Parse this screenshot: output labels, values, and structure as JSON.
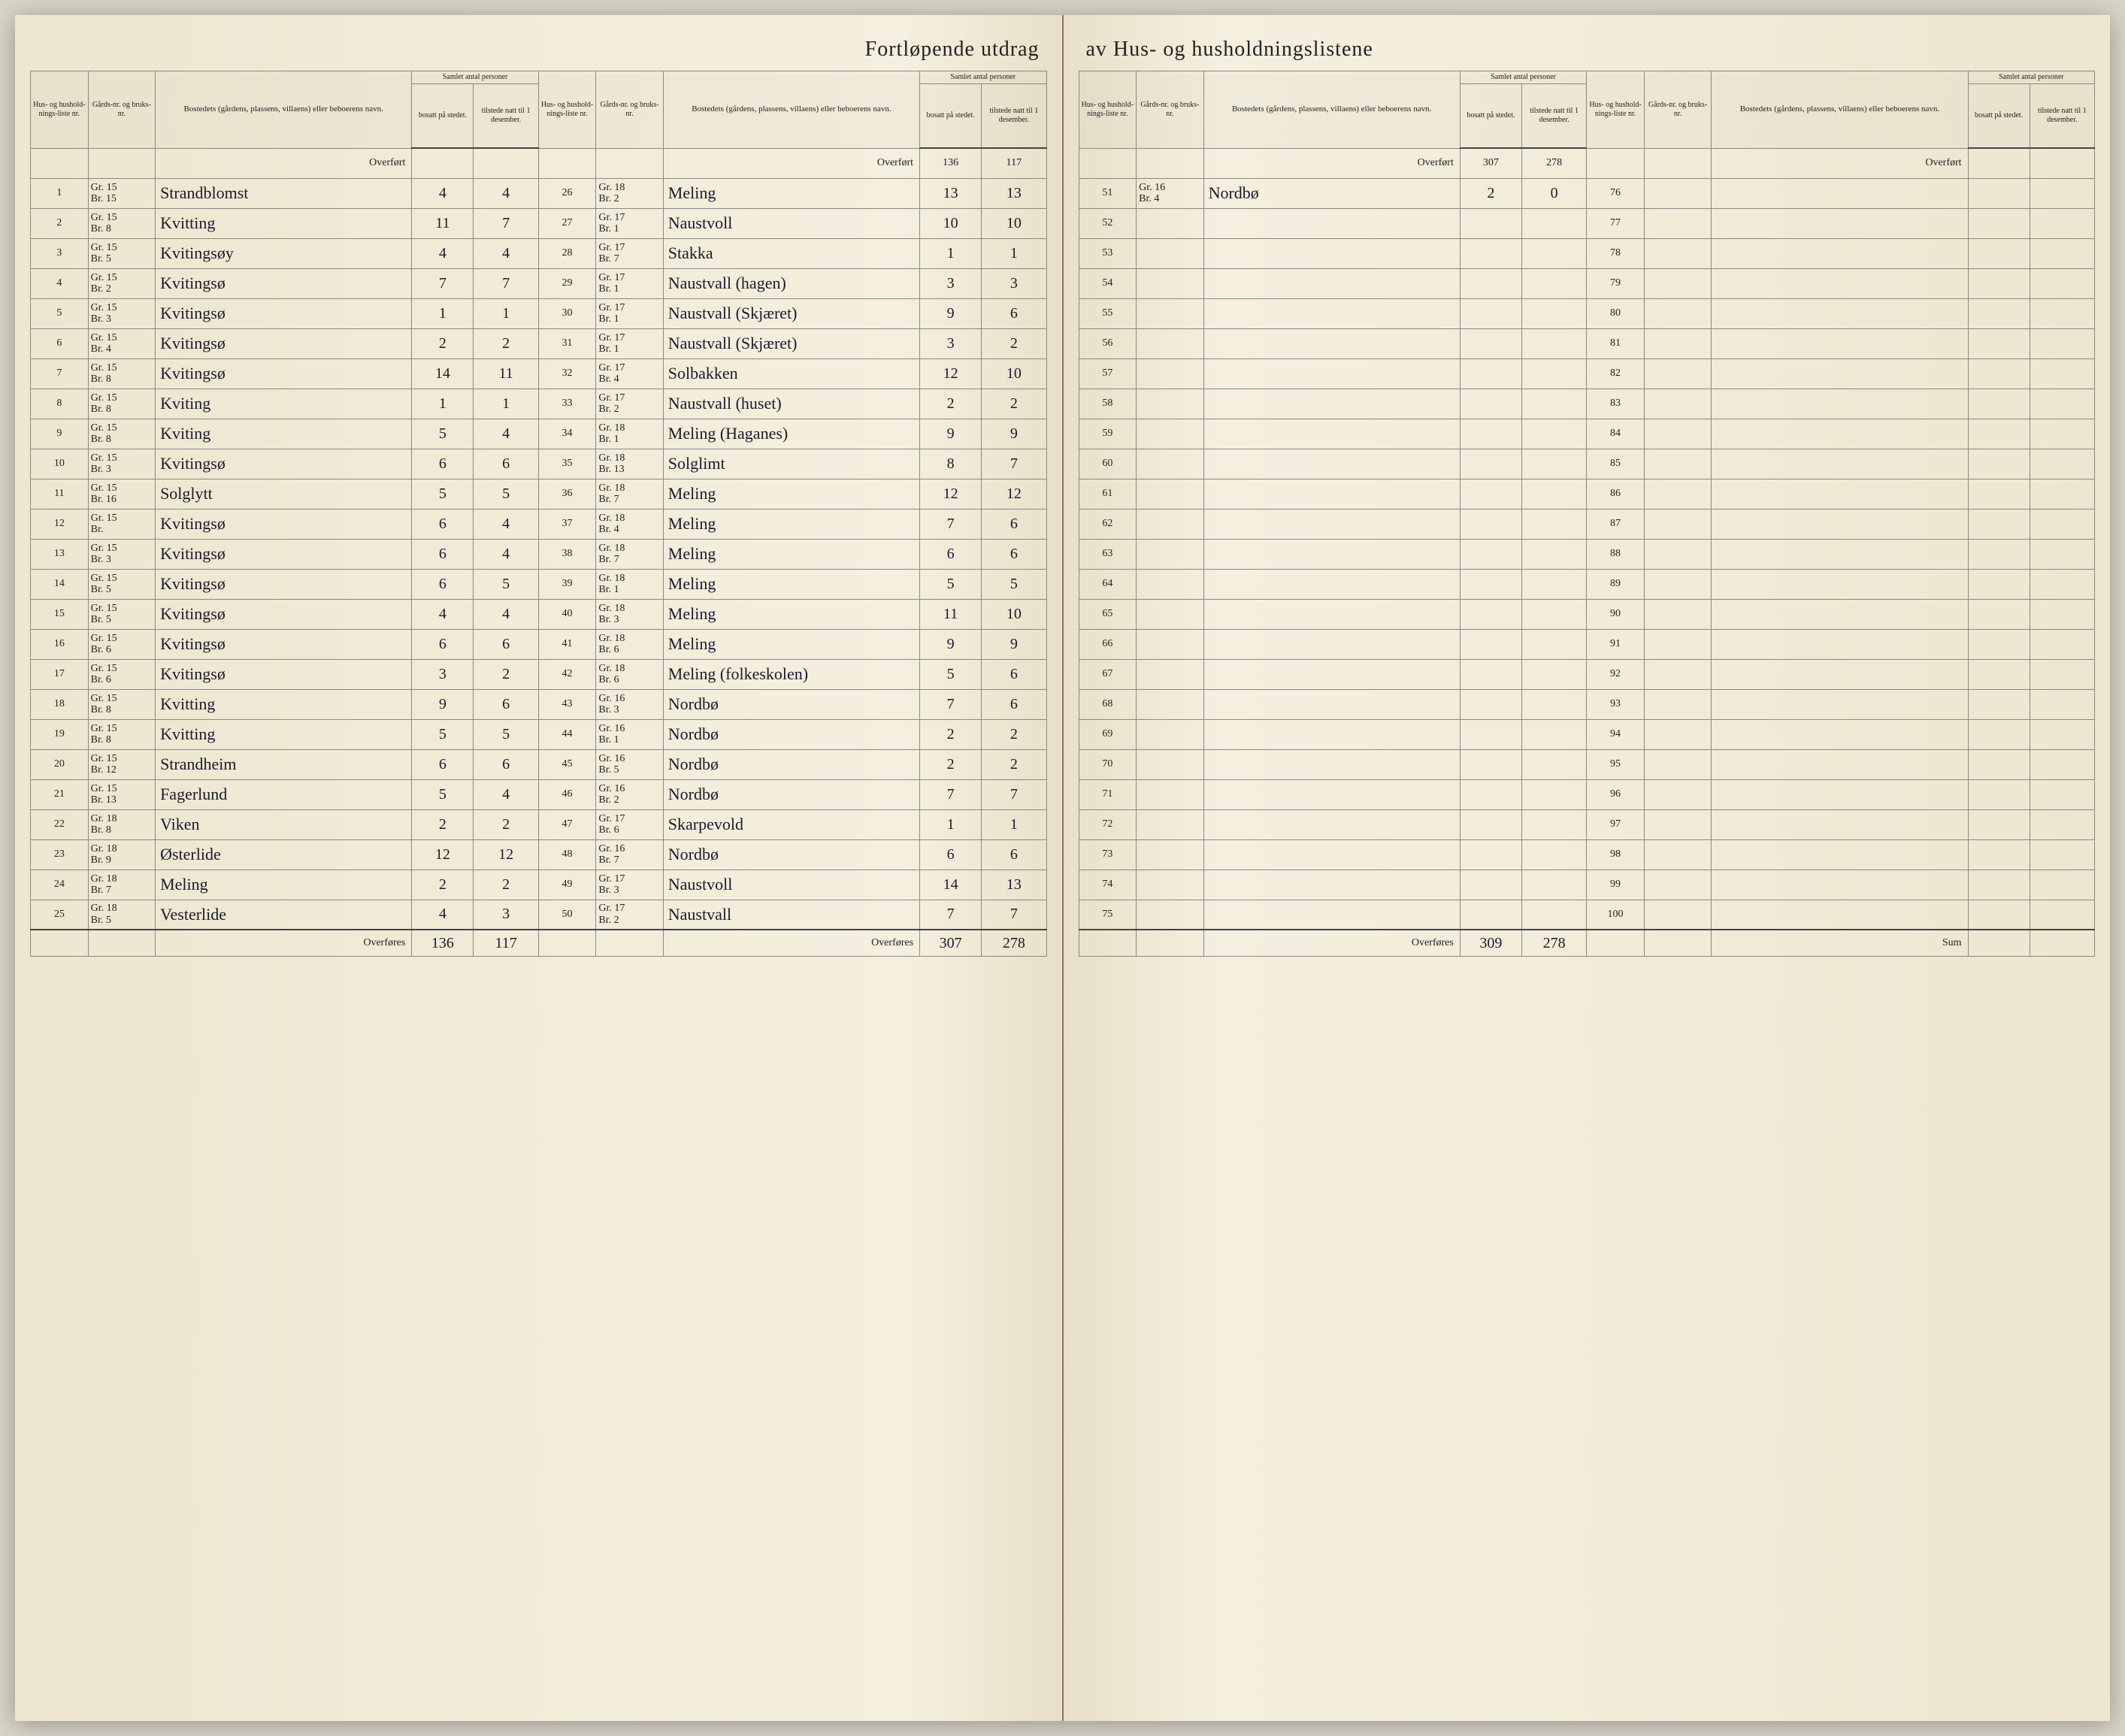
{
  "title_left": "Fortløpende utdrag",
  "title_right": "av Hus- og husholdningslistene",
  "headers": {
    "liste_nr": "Hus- og hushold-nings-liste nr.",
    "gards_nr": "Gårds-nr. og bruks-nr.",
    "bosted": "Bostedets (gårdens, plassens, villaens) eller beboerens navn.",
    "samlet": "Samlet antal personer",
    "bosatt": "bosatt på stedet.",
    "tilstede": "tilstede natt til 1 desember."
  },
  "overfort_label": "Overført",
  "overfores_label": "Overføres",
  "sum_label": "Sum",
  "col1_overfort": {
    "bosatt": "",
    "tilstede": ""
  },
  "col2_overfort": {
    "bosatt": "136",
    "tilstede": "117"
  },
  "col3_overfort": {
    "bosatt": "307",
    "tilstede": "278"
  },
  "col4_overfort": {
    "bosatt": "",
    "tilstede": ""
  },
  "col1_footer": {
    "bosatt": "136",
    "tilstede": "117"
  },
  "col2_footer": {
    "bosatt": "307",
    "tilstede": "278"
  },
  "col3_footer": {
    "bosatt": "309",
    "tilstede": "278"
  },
  "col4_footer": {
    "bosatt": "",
    "tilstede": ""
  },
  "rows_left_a": [
    {
      "n": "1",
      "g": "Gr. 15",
      "b": "Br. 15",
      "name": "Strandblomst",
      "bo": "4",
      "ti": "4"
    },
    {
      "n": "2",
      "g": "Gr. 15",
      "b": "Br. 8",
      "name": "Kvitting",
      "bo": "11",
      "ti": "7"
    },
    {
      "n": "3",
      "g": "Gr. 15",
      "b": "Br. 5",
      "name": "Kvitingsøy",
      "bo": "4",
      "ti": "4"
    },
    {
      "n": "4",
      "g": "Gr. 15",
      "b": "Br. 2",
      "name": "Kvitingsø",
      "bo": "7",
      "ti": "7"
    },
    {
      "n": "5",
      "g": "Gr. 15",
      "b": "Br. 3",
      "name": "Kvitingsø",
      "bo": "1",
      "ti": "1"
    },
    {
      "n": "6",
      "g": "Gr. 15",
      "b": "Br. 4",
      "name": "Kvitingsø",
      "bo": "2",
      "ti": "2"
    },
    {
      "n": "7",
      "g": "Gr. 15",
      "b": "Br. 8",
      "name": "Kvitingsø",
      "bo": "14",
      "ti": "11"
    },
    {
      "n": "8",
      "g": "Gr. 15",
      "b": "Br. 8",
      "name": "Kviting",
      "bo": "1",
      "ti": "1"
    },
    {
      "n": "9",
      "g": "Gr. 15",
      "b": "Br. 8",
      "name": "Kviting",
      "bo": "5",
      "ti": "4"
    },
    {
      "n": "10",
      "g": "Gr. 15",
      "b": "Br. 3",
      "name": "Kvitingsø",
      "bo": "6",
      "ti": "6"
    },
    {
      "n": "11",
      "g": "Gr. 15",
      "b": "Br. 16",
      "name": "Solglytt",
      "bo": "5",
      "ti": "5"
    },
    {
      "n": "12",
      "g": "Gr. 15",
      "b": "Br.",
      "name": "Kvitingsø",
      "bo": "6",
      "ti": "4"
    },
    {
      "n": "13",
      "g": "Gr. 15",
      "b": "Br. 3",
      "name": "Kvitingsø",
      "bo": "6",
      "ti": "4"
    },
    {
      "n": "14",
      "g": "Gr. 15",
      "b": "Br. 5",
      "name": "Kvitingsø",
      "bo": "6",
      "ti": "5"
    },
    {
      "n": "15",
      "g": "Gr. 15",
      "b": "Br. 5",
      "name": "Kvitingsø",
      "bo": "4",
      "ti": "4"
    },
    {
      "n": "16",
      "g": "Gr. 15",
      "b": "Br. 6",
      "name": "Kvitingsø",
      "bo": "6",
      "ti": "6"
    },
    {
      "n": "17",
      "g": "Gr. 15",
      "b": "Br. 6",
      "name": "Kvitingsø",
      "bo": "3",
      "ti": "2"
    },
    {
      "n": "18",
      "g": "Gr. 15",
      "b": "Br. 8",
      "name": "Kvitting",
      "bo": "9",
      "ti": "6"
    },
    {
      "n": "19",
      "g": "Gr. 15",
      "b": "Br. 8",
      "name": "Kvitting",
      "bo": "5",
      "ti": "5"
    },
    {
      "n": "20",
      "g": "Gr. 15",
      "b": "Br. 12",
      "name": "Strandheim",
      "bo": "6",
      "ti": "6"
    },
    {
      "n": "21",
      "g": "Gr. 15",
      "b": "Br. 13",
      "name": "Fagerlund",
      "bo": "5",
      "ti": "4"
    },
    {
      "n": "22",
      "g": "Gr. 18",
      "b": "Br. 8",
      "name": "Viken",
      "bo": "2",
      "ti": "2"
    },
    {
      "n": "23",
      "g": "Gr. 18",
      "b": "Br. 9",
      "name": "Østerlide",
      "bo": "12",
      "ti": "12"
    },
    {
      "n": "24",
      "g": "Gr. 18",
      "b": "Br. 7",
      "name": "Meling",
      "bo": "2",
      "ti": "2"
    },
    {
      "n": "25",
      "g": "Gr. 18",
      "b": "Br. 5",
      "name": "Vesterlide",
      "bo": "4",
      "ti": "3"
    }
  ],
  "rows_left_b": [
    {
      "n": "26",
      "g": "Gr. 18",
      "b": "Br. 2",
      "name": "Meling",
      "bo": "13",
      "ti": "13"
    },
    {
      "n": "27",
      "g": "Gr. 17",
      "b": "Br. 1",
      "name": "Naustvoll",
      "bo": "10",
      "ti": "10"
    },
    {
      "n": "28",
      "g": "Gr. 17",
      "b": "Br. 7",
      "name": "Stakka",
      "bo": "1",
      "ti": "1"
    },
    {
      "n": "29",
      "g": "Gr. 17",
      "b": "Br. 1",
      "name": "Naustvall (hagen)",
      "bo": "3",
      "ti": "3"
    },
    {
      "n": "30",
      "g": "Gr. 17",
      "b": "Br. 1",
      "name": "Naustvall (Skjæret)",
      "bo": "9",
      "ti": "6"
    },
    {
      "n": "31",
      "g": "Gr. 17",
      "b": "Br. 1",
      "name": "Naustvall (Skjæret)",
      "bo": "3",
      "ti": "2"
    },
    {
      "n": "32",
      "g": "Gr. 17",
      "b": "Br. 4",
      "name": "Solbakken",
      "bo": "12",
      "ti": "10"
    },
    {
      "n": "33",
      "g": "Gr. 17",
      "b": "Br. 2",
      "name": "Naustvall (huset)",
      "bo": "2",
      "ti": "2"
    },
    {
      "n": "34",
      "g": "Gr. 18",
      "b": "Br. 1",
      "name": "Meling (Haganes)",
      "bo": "9",
      "ti": "9"
    },
    {
      "n": "35",
      "g": "Gr. 18",
      "b": "Br. 13",
      "name": "Solglimt",
      "bo": "8",
      "ti": "7"
    },
    {
      "n": "36",
      "g": "Gr. 18",
      "b": "Br. 7",
      "name": "Meling",
      "bo": "12",
      "ti": "12"
    },
    {
      "n": "37",
      "g": "Gr. 18",
      "b": "Br. 4",
      "name": "Meling",
      "bo": "7",
      "ti": "6"
    },
    {
      "n": "38",
      "g": "Gr. 18",
      "b": "Br. 7",
      "name": "Meling",
      "bo": "6",
      "ti": "6"
    },
    {
      "n": "39",
      "g": "Gr. 18",
      "b": "Br. 1",
      "name": "Meling",
      "bo": "5",
      "ti": "5"
    },
    {
      "n": "40",
      "g": "Gr. 18",
      "b": "Br. 3",
      "name": "Meling",
      "bo": "11",
      "ti": "10"
    },
    {
      "n": "41",
      "g": "Gr. 18",
      "b": "Br. 6",
      "name": "Meling",
      "bo": "9",
      "ti": "9"
    },
    {
      "n": "42",
      "g": "Gr. 18",
      "b": "Br. 6",
      "name": "Meling (folkeskolen)",
      "bo": "5",
      "ti": "6"
    },
    {
      "n": "43",
      "g": "Gr. 16",
      "b": "Br. 3",
      "name": "Nordbø",
      "bo": "7",
      "ti": "6"
    },
    {
      "n": "44",
      "g": "Gr. 16",
      "b": "Br. 1",
      "name": "Nordbø",
      "bo": "2",
      "ti": "2"
    },
    {
      "n": "45",
      "g": "Gr. 16",
      "b": "Br. 5",
      "name": "Nordbø",
      "bo": "2",
      "ti": "2"
    },
    {
      "n": "46",
      "g": "Gr. 16",
      "b": "Br. 2",
      "name": "Nordbø",
      "bo": "7",
      "ti": "7"
    },
    {
      "n": "47",
      "g": "Gr. 17",
      "b": "Br. 6",
      "name": "Skarpevold",
      "bo": "1",
      "ti": "1"
    },
    {
      "n": "48",
      "g": "Gr. 16",
      "b": "Br. 7",
      "name": "Nordbø",
      "bo": "6",
      "ti": "6"
    },
    {
      "n": "49",
      "g": "Gr. 17",
      "b": "Br. 3",
      "name": "Naustvoll",
      "bo": "14",
      "ti": "13"
    },
    {
      "n": "50",
      "g": "Gr. 17",
      "b": "Br. 2",
      "name": "Naustvall",
      "bo": "7",
      "ti": "7"
    }
  ],
  "rows_right_a": [
    {
      "n": "51",
      "g": "Gr. 16",
      "b": "Br. 4",
      "name": "Nordbø",
      "bo": "2",
      "ti": "0"
    },
    {
      "n": "52",
      "g": "",
      "b": "",
      "name": "",
      "bo": "",
      "ti": ""
    },
    {
      "n": "53",
      "g": "",
      "b": "",
      "name": "",
      "bo": "",
      "ti": ""
    },
    {
      "n": "54",
      "g": "",
      "b": "",
      "name": "",
      "bo": "",
      "ti": ""
    },
    {
      "n": "55",
      "g": "",
      "b": "",
      "name": "",
      "bo": "",
      "ti": ""
    },
    {
      "n": "56",
      "g": "",
      "b": "",
      "name": "",
      "bo": "",
      "ti": ""
    },
    {
      "n": "57",
      "g": "",
      "b": "",
      "name": "",
      "bo": "",
      "ti": ""
    },
    {
      "n": "58",
      "g": "",
      "b": "",
      "name": "",
      "bo": "",
      "ti": ""
    },
    {
      "n": "59",
      "g": "",
      "b": "",
      "name": "",
      "bo": "",
      "ti": ""
    },
    {
      "n": "60",
      "g": "",
      "b": "",
      "name": "",
      "bo": "",
      "ti": ""
    },
    {
      "n": "61",
      "g": "",
      "b": "",
      "name": "",
      "bo": "",
      "ti": ""
    },
    {
      "n": "62",
      "g": "",
      "b": "",
      "name": "",
      "bo": "",
      "ti": ""
    },
    {
      "n": "63",
      "g": "",
      "b": "",
      "name": "",
      "bo": "",
      "ti": ""
    },
    {
      "n": "64",
      "g": "",
      "b": "",
      "name": "",
      "bo": "",
      "ti": ""
    },
    {
      "n": "65",
      "g": "",
      "b": "",
      "name": "",
      "bo": "",
      "ti": ""
    },
    {
      "n": "66",
      "g": "",
      "b": "",
      "name": "",
      "bo": "",
      "ti": ""
    },
    {
      "n": "67",
      "g": "",
      "b": "",
      "name": "",
      "bo": "",
      "ti": ""
    },
    {
      "n": "68",
      "g": "",
      "b": "",
      "name": "",
      "bo": "",
      "ti": ""
    },
    {
      "n": "69",
      "g": "",
      "b": "",
      "name": "",
      "bo": "",
      "ti": ""
    },
    {
      "n": "70",
      "g": "",
      "b": "",
      "name": "",
      "bo": "",
      "ti": ""
    },
    {
      "n": "71",
      "g": "",
      "b": "",
      "name": "",
      "bo": "",
      "ti": ""
    },
    {
      "n": "72",
      "g": "",
      "b": "",
      "name": "",
      "bo": "",
      "ti": ""
    },
    {
      "n": "73",
      "g": "",
      "b": "",
      "name": "",
      "bo": "",
      "ti": ""
    },
    {
      "n": "74",
      "g": "",
      "b": "",
      "name": "",
      "bo": "",
      "ti": ""
    },
    {
      "n": "75",
      "g": "",
      "b": "",
      "name": "",
      "bo": "",
      "ti": ""
    }
  ],
  "rows_right_b": [
    {
      "n": "76",
      "g": "",
      "b": "",
      "name": "",
      "bo": "",
      "ti": ""
    },
    {
      "n": "77",
      "g": "",
      "b": "",
      "name": "",
      "bo": "",
      "ti": ""
    },
    {
      "n": "78",
      "g": "",
      "b": "",
      "name": "",
      "bo": "",
      "ti": ""
    },
    {
      "n": "79",
      "g": "",
      "b": "",
      "name": "",
      "bo": "",
      "ti": ""
    },
    {
      "n": "80",
      "g": "",
      "b": "",
      "name": "",
      "bo": "",
      "ti": ""
    },
    {
      "n": "81",
      "g": "",
      "b": "",
      "name": "",
      "bo": "",
      "ti": ""
    },
    {
      "n": "82",
      "g": "",
      "b": "",
      "name": "",
      "bo": "",
      "ti": ""
    },
    {
      "n": "83",
      "g": "",
      "b": "",
      "name": "",
      "bo": "",
      "ti": ""
    },
    {
      "n": "84",
      "g": "",
      "b": "",
      "name": "",
      "bo": "",
      "ti": ""
    },
    {
      "n": "85",
      "g": "",
      "b": "",
      "name": "",
      "bo": "",
      "ti": ""
    },
    {
      "n": "86",
      "g": "",
      "b": "",
      "name": "",
      "bo": "",
      "ti": ""
    },
    {
      "n": "87",
      "g": "",
      "b": "",
      "name": "",
      "bo": "",
      "ti": ""
    },
    {
      "n": "88",
      "g": "",
      "b": "",
      "name": "",
      "bo": "",
      "ti": ""
    },
    {
      "n": "89",
      "g": "",
      "b": "",
      "name": "",
      "bo": "",
      "ti": ""
    },
    {
      "n": "90",
      "g": "",
      "b": "",
      "name": "",
      "bo": "",
      "ti": ""
    },
    {
      "n": "91",
      "g": "",
      "b": "",
      "name": "",
      "bo": "",
      "ti": ""
    },
    {
      "n": "92",
      "g": "",
      "b": "",
      "name": "",
      "bo": "",
      "ti": ""
    },
    {
      "n": "93",
      "g": "",
      "b": "",
      "name": "",
      "bo": "",
      "ti": ""
    },
    {
      "n": "94",
      "g": "",
      "b": "",
      "name": "",
      "bo": "",
      "ti": ""
    },
    {
      "n": "95",
      "g": "",
      "b": "",
      "name": "",
      "bo": "",
      "ti": ""
    },
    {
      "n": "96",
      "g": "",
      "b": "",
      "name": "",
      "bo": "",
      "ti": ""
    },
    {
      "n": "97",
      "g": "",
      "b": "",
      "name": "",
      "bo": "",
      "ti": ""
    },
    {
      "n": "98",
      "g": "",
      "b": "",
      "name": "",
      "bo": "",
      "ti": ""
    },
    {
      "n": "99",
      "g": "",
      "b": "",
      "name": "",
      "bo": "",
      "ti": ""
    },
    {
      "n": "100",
      "g": "",
      "b": "",
      "name": "",
      "bo": "",
      "ti": ""
    }
  ]
}
